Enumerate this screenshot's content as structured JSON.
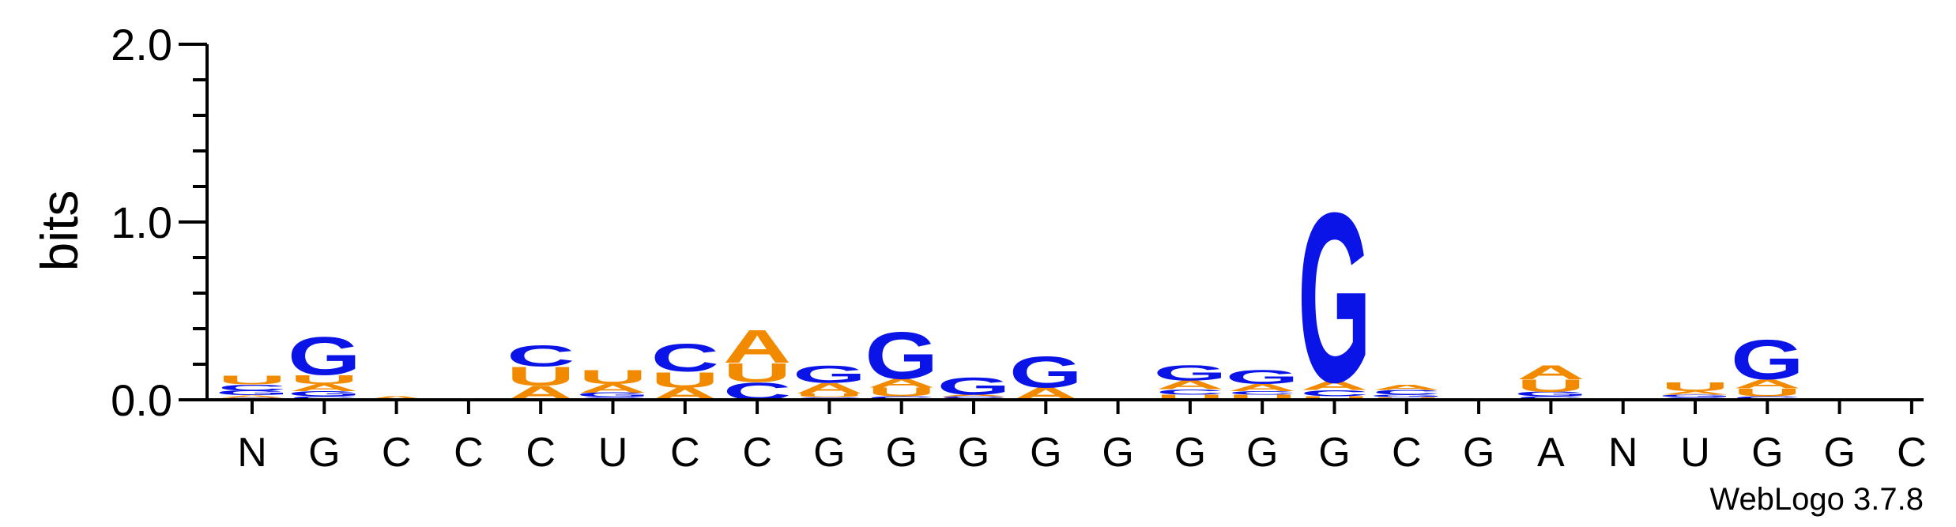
{
  "chart_data": {
    "type": "sequence-logo",
    "ylabel": "bits",
    "ylim": [
      0,
      2.0
    ],
    "yticks": [
      "0.0",
      "1.0",
      "2.0"
    ],
    "credit": "WebLogo 3.7.8",
    "colors": {
      "A": "#f28a00",
      "U": "#f28a00",
      "C": "#0a14e6",
      "G": "#0a14e6"
    },
    "positions": [
      {
        "label": "N",
        "stack": [
          [
            "C",
            0.012
          ],
          [
            "A",
            0.015
          ],
          [
            "G",
            0.025
          ],
          [
            "C",
            0.035
          ],
          [
            "U",
            0.05
          ]
        ]
      },
      {
        "label": "G",
        "stack": [
          [
            "C",
            0.02
          ],
          [
            "G",
            0.03
          ],
          [
            "A",
            0.04
          ],
          [
            "U",
            0.05
          ],
          [
            "G",
            0.22
          ]
        ]
      },
      {
        "label": "C",
        "stack": [
          [
            "A",
            0.02
          ]
        ]
      },
      {
        "label": "C",
        "stack": []
      },
      {
        "label": "C",
        "stack": [
          [
            "A",
            0.08
          ],
          [
            "U",
            0.11
          ],
          [
            "C",
            0.12
          ]
        ]
      },
      {
        "label": "U",
        "stack": [
          [
            "C",
            0.015
          ],
          [
            "G",
            0.025
          ],
          [
            "A",
            0.05
          ],
          [
            "U",
            0.08
          ]
        ]
      },
      {
        "label": "C",
        "stack": [
          [
            "A",
            0.07
          ],
          [
            "U",
            0.09
          ],
          [
            "C",
            0.16
          ]
        ]
      },
      {
        "label": "C",
        "stack": [
          [
            "C",
            0.1
          ],
          [
            "U",
            0.11
          ],
          [
            "A",
            0.19
          ]
        ]
      },
      {
        "label": "G",
        "stack": [
          [
            "C",
            0.015
          ],
          [
            "U",
            0.02
          ],
          [
            "A",
            0.06
          ],
          [
            "G",
            0.1
          ]
        ]
      },
      {
        "label": "G",
        "stack": [
          [
            "C",
            0.02
          ],
          [
            "U",
            0.05
          ],
          [
            "A",
            0.05
          ],
          [
            "G",
            0.27
          ]
        ]
      },
      {
        "label": "G",
        "stack": [
          [
            "U",
            0.01
          ],
          [
            "C",
            0.01
          ],
          [
            "A",
            0.01
          ],
          [
            "G",
            0.1
          ]
        ]
      },
      {
        "label": "G",
        "stack": [
          [
            "A",
            0.07
          ],
          [
            "G",
            0.18
          ]
        ]
      },
      {
        "label": "G",
        "stack": []
      },
      {
        "label": "G",
        "stack": [
          [
            "U",
            0.03
          ],
          [
            "C",
            0.03
          ],
          [
            "A",
            0.05
          ],
          [
            "G",
            0.09
          ]
        ]
      },
      {
        "label": "G",
        "stack": [
          [
            "U",
            0.03
          ],
          [
            "C",
            0.02
          ],
          [
            "A",
            0.04
          ],
          [
            "G",
            0.08
          ]
        ]
      },
      {
        "label": "G",
        "stack": [
          [
            "U",
            0.02
          ],
          [
            "C",
            0.035
          ],
          [
            "A",
            0.05
          ],
          [
            "G",
            0.98
          ]
        ]
      },
      {
        "label": "C",
        "stack": [
          [
            "U",
            0.015
          ],
          [
            "G",
            0.015
          ],
          [
            "C",
            0.025
          ],
          [
            "A",
            0.03
          ]
        ]
      },
      {
        "label": "G",
        "stack": []
      },
      {
        "label": "A",
        "stack": [
          [
            "C",
            0.02
          ],
          [
            "G",
            0.025
          ],
          [
            "U",
            0.07
          ],
          [
            "A",
            0.08
          ]
        ]
      },
      {
        "label": "N",
        "stack": []
      },
      {
        "label": "U",
        "stack": [
          [
            "C",
            0.015
          ],
          [
            "G",
            0.015
          ],
          [
            "A",
            0.02
          ],
          [
            "U",
            0.05
          ]
        ]
      },
      {
        "label": "G",
        "stack": [
          [
            "C",
            0.02
          ],
          [
            "U",
            0.045
          ],
          [
            "A",
            0.05
          ],
          [
            "G",
            0.23
          ]
        ]
      },
      {
        "label": "G",
        "stack": []
      },
      {
        "label": "C",
        "stack": []
      }
    ]
  }
}
